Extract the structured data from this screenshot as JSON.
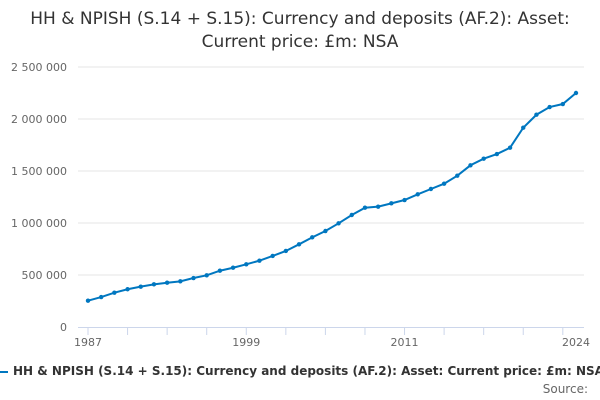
{
  "chart_data": {
    "type": "line",
    "title": "HH & NPISH (S.14 + S.15): Currency and deposits (AF.2): Asset: Current price: £m: NSA",
    "x": [
      1987,
      1988,
      1989,
      1990,
      1991,
      1992,
      1993,
      1994,
      1995,
      1996,
      1997,
      1998,
      1999,
      2000,
      2001,
      2002,
      2003,
      2004,
      2005,
      2006,
      2007,
      2008,
      2009,
      2010,
      2011,
      2012,
      2013,
      2014,
      2015,
      2016,
      2017,
      2018,
      2019,
      2020,
      2021,
      2022,
      2023,
      2024
    ],
    "series": [
      {
        "name": "HH & NPISH (S.14 + S.15): Currency and deposits (AF.2): Asset: Current price: £m: NSA",
        "color": "#0077c0",
        "values": [
          253000,
          288000,
          330000,
          363000,
          388000,
          410000,
          426000,
          439000,
          471000,
          497000,
          541000,
          570000,
          603000,
          638000,
          683000,
          731000,
          795000,
          862000,
          923000,
          997000,
          1077000,
          1147000,
          1157000,
          1189000,
          1221000,
          1276000,
          1327000,
          1378000,
          1455000,
          1555000,
          1618000,
          1663000,
          1724000,
          1916000,
          2041000,
          2115000,
          2144000,
          2250000
        ]
      }
    ],
    "xticks": [
      "1987",
      "1999",
      "2011",
      "2024"
    ],
    "yticks": [
      "0",
      "500 000",
      "1 000 000",
      "1 500 000",
      "2 000 000",
      "2 500 000"
    ],
    "ylim": [
      0,
      2500000
    ],
    "xlim": [
      1987,
      2024
    ],
    "grid": true,
    "legend": "bottom",
    "xlabel": "",
    "ylabel": ""
  },
  "source_label": "Source:"
}
